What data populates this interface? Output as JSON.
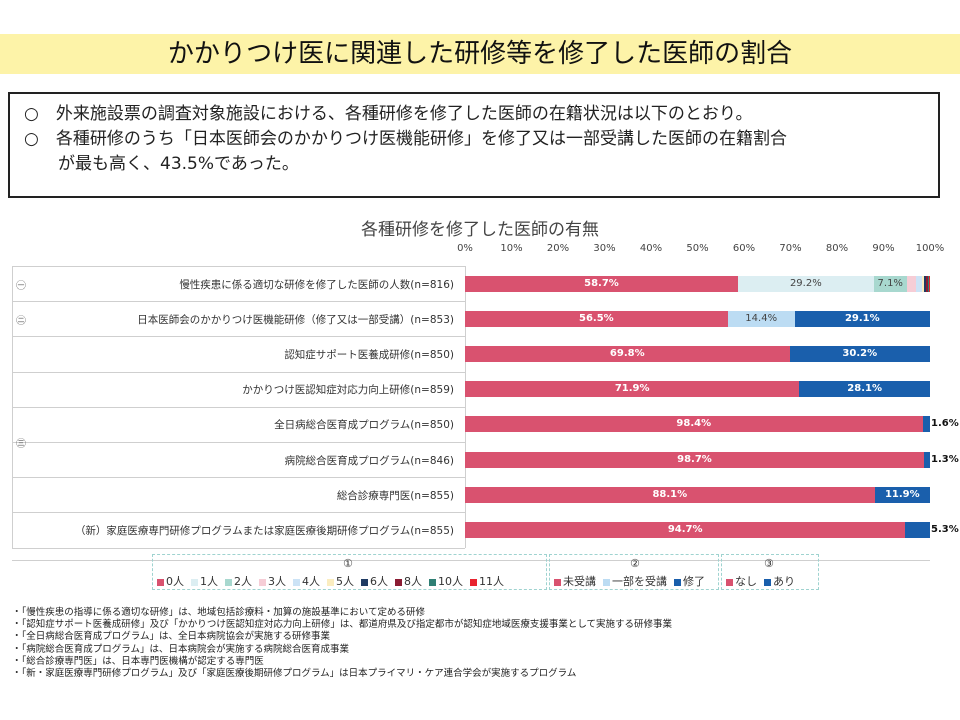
{
  "title": "かかりつけ医に関連した研修等を修了した医師の割合",
  "summary": [
    "○　外来施設票の調査対象施設における、各種研修を修了した医師の在籍状況は以下のとおり。",
    "○　各種研修のうち「日本医師会のかかりつけ医機能研修」を修了又は一部受講した医師の在籍割合",
    "が最も高く、43.5%であった。"
  ],
  "chart_data": {
    "type": "bar",
    "orientation": "horizontal-stacked",
    "title": "各種研修を修了した医師の有無",
    "x_ticks": [
      "0%",
      "10%",
      "20%",
      "30%",
      "40%",
      "50%",
      "60%",
      "70%",
      "80%",
      "90%",
      "100%"
    ],
    "xlim": [
      0,
      100
    ],
    "group_marks": [
      "㊀",
      "㊁",
      "㊂"
    ],
    "rows": [
      {
        "label": "慢性疾患に係る適切な研修を修了した医師の人数(n=816)",
        "group": 1,
        "segments": [
          {
            "key": "0人",
            "value": 58.7,
            "color": "#d9526f",
            "label": "58.7%",
            "text": "light"
          },
          {
            "key": "1人",
            "value": 29.2,
            "color": "#dceef2",
            "label": "29.2%",
            "text": "dark"
          },
          {
            "key": "2人",
            "value": 7.1,
            "color": "#a8d8cf",
            "label": "7.1%",
            "text": "dark"
          },
          {
            "key": "3人",
            "value": 2.0,
            "color": "#f6cdd6",
            "label": "",
            "text": "dark"
          },
          {
            "key": "4人",
            "value": 1.2,
            "color": "#cce3f6",
            "label": "",
            "text": "dark"
          },
          {
            "key": "5人",
            "value": 0.6,
            "color": "#fbedc0",
            "label": "",
            "text": "dark"
          },
          {
            "key": "6人",
            "value": 0.3,
            "color": "#1f3b63",
            "label": "",
            "text": "dark"
          },
          {
            "key": "8人",
            "value": 0.5,
            "color": "#8b1c33",
            "label": "",
            "text": "dark"
          },
          {
            "key": "10人",
            "value": 0.2,
            "color": "#2f7f74",
            "label": "",
            "text": "dark"
          },
          {
            "key": "11人",
            "value": 0.2,
            "color": "#e8232f",
            "label": "",
            "text": "dark"
          }
        ]
      },
      {
        "label": "日本医師会のかかりつけ医機能研修（修了又は一部受講）(n=853)",
        "group": 2,
        "segments": [
          {
            "key": "未受講",
            "value": 56.5,
            "color": "#d9526f",
            "label": "56.5%",
            "text": "light"
          },
          {
            "key": "一部を受講",
            "value": 14.4,
            "color": "#bcdcf3",
            "label": "14.4%",
            "text": "dark"
          },
          {
            "key": "修了",
            "value": 29.1,
            "color": "#1a5fac",
            "label": "29.1%",
            "text": "light"
          }
        ]
      },
      {
        "label": "認知症サポート医養成研修(n=850)",
        "group": 3,
        "segments": [
          {
            "key": "なし",
            "value": 69.8,
            "color": "#d9526f",
            "label": "69.8%",
            "text": "light"
          },
          {
            "key": "あり",
            "value": 30.2,
            "color": "#1a5fac",
            "label": "30.2%",
            "text": "light"
          }
        ]
      },
      {
        "label": "かかりつけ医認知症対応力向上研修(n=859)",
        "group": 3,
        "segments": [
          {
            "key": "なし",
            "value": 71.9,
            "color": "#d9526f",
            "label": "71.9%",
            "text": "light"
          },
          {
            "key": "あり",
            "value": 28.1,
            "color": "#1a5fac",
            "label": "28.1%",
            "text": "light"
          }
        ]
      },
      {
        "label": "全日病総合医育成プログラム(n=850)",
        "group": 3,
        "segments": [
          {
            "key": "なし",
            "value": 98.4,
            "color": "#d9526f",
            "label": "98.4%",
            "text": "light"
          },
          {
            "key": "あり",
            "value": 1.6,
            "color": "#1a5fac",
            "label": "1.6%",
            "text": "outside"
          }
        ]
      },
      {
        "label": "病院総合医育成プログラム(n=846)",
        "group": 3,
        "segments": [
          {
            "key": "なし",
            "value": 98.7,
            "color": "#d9526f",
            "label": "98.7%",
            "text": "light"
          },
          {
            "key": "あり",
            "value": 1.3,
            "color": "#1a5fac",
            "label": "1.3%",
            "text": "outside"
          }
        ]
      },
      {
        "label": "総合診療専門医(n=855)",
        "group": 3,
        "segments": [
          {
            "key": "なし",
            "value": 88.1,
            "color": "#d9526f",
            "label": "88.1%",
            "text": "light"
          },
          {
            "key": "あり",
            "value": 11.9,
            "color": "#1a5fac",
            "label": "11.9%",
            "text": "light"
          }
        ]
      },
      {
        "label": "（新）家庭医療専門研修プログラムまたは家庭医療後期研修プログラム(n=855)",
        "group": 3,
        "segments": [
          {
            "key": "なし",
            "value": 94.7,
            "color": "#d9526f",
            "label": "94.7%",
            "text": "light"
          },
          {
            "key": "あり",
            "value": 5.3,
            "color": "#1a5fac",
            "label": "5.3%",
            "text": "outside"
          }
        ]
      }
    ],
    "legends": [
      {
        "number": "①",
        "items": [
          {
            "label": "0人",
            "color": "#d9526f"
          },
          {
            "label": "1人",
            "color": "#dceef2"
          },
          {
            "label": "2人",
            "color": "#a8d8cf"
          },
          {
            "label": "3人",
            "color": "#f6cdd6"
          },
          {
            "label": "4人",
            "color": "#cce3f6"
          },
          {
            "label": "5人",
            "color": "#fbedc0"
          },
          {
            "label": "6人",
            "color": "#1f3b63"
          },
          {
            "label": "8人",
            "color": "#8b1c33"
          },
          {
            "label": "10人",
            "color": "#2f7f74"
          },
          {
            "label": "11人",
            "color": "#e8232f"
          }
        ]
      },
      {
        "number": "②",
        "items": [
          {
            "label": "未受講",
            "color": "#d9526f"
          },
          {
            "label": "一部を受講",
            "color": "#bcdcf3"
          },
          {
            "label": "修了",
            "color": "#1a5fac"
          }
        ]
      },
      {
        "number": "③",
        "items": [
          {
            "label": "なし",
            "color": "#d9526f"
          },
          {
            "label": "あり",
            "color": "#1a5fac"
          }
        ]
      }
    ]
  },
  "notes": [
    "・「慢性疾患の指導に係る適切な研修」は、地域包括診療料・加算の施設基準において定める研修",
    "・「認知症サポート医養成研修」及び「かかりつけ医認知症対応力向上研修」は、都道府県及び指定都市が認知症地域医療支援事業として実施する研修事業",
    "・「全日病総合医育成プログラム」は、全日本病院協会が実施する研修事業",
    "・「病院総合医育成プログラム」は、日本病院会が実施する病院総合医育成事業",
    "・「総合診療専門医」は、日本専門医機構が認定する専門医",
    "・「新・家庭医療専門研修プログラム」及び「家庭医療後期研修プログラム」は日本プライマリ・ケア連合学会が実施するプログラム"
  ]
}
